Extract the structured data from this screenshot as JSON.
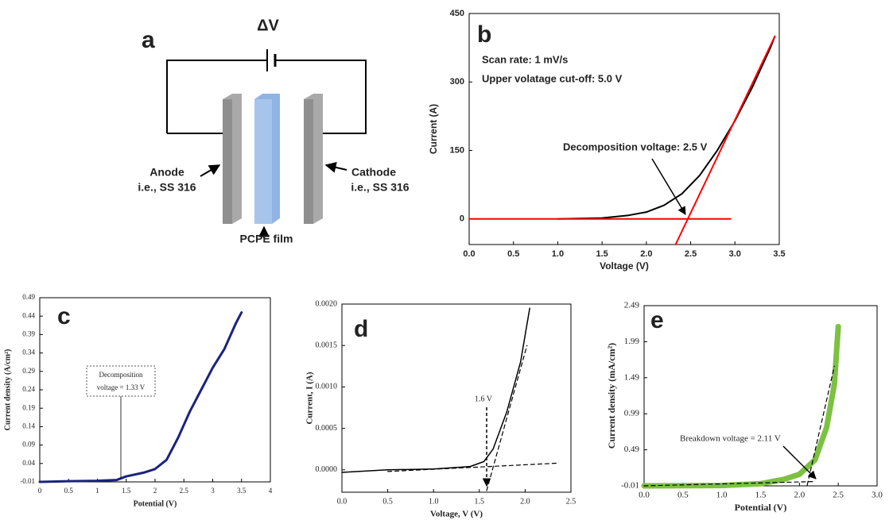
{
  "diagram": {
    "label": "a",
    "voltage": "ΔV",
    "anode": "Anode",
    "anode_note": "i.e., SS 316",
    "cathode": "Cathode",
    "cathode_note": "i.e., SS 316",
    "film": "PCPE film"
  },
  "chart_data": [
    {
      "type": "line",
      "label": "b",
      "xlabel": "Voltage (V)",
      "ylabel": "Current (A)",
      "xlim": [
        0,
        3.5
      ],
      "ylim": [
        -56,
        450
      ],
      "xticks": [
        {
          "value": 0,
          "label": "0.0"
        },
        {
          "value": 0.5,
          "label": "0.5"
        },
        {
          "value": 1,
          "label": "1.0"
        },
        {
          "value": 1.5,
          "label": "1.5"
        },
        {
          "value": 2,
          "label": "2.0"
        },
        {
          "value": 2.5,
          "label": "2.5"
        },
        {
          "value": 3,
          "label": "3.0"
        },
        {
          "value": 3.5,
          "label": "3.5"
        }
      ],
      "yticks": [
        0,
        150,
        300,
        450
      ],
      "annotations": [
        "Scan rate: 1 mV/s",
        "Upper volatage cut-off: 5.0 V",
        "Decomposition voltage: 2.5 V"
      ],
      "series": [
        {
          "color": "#000000",
          "x": [
            1.0,
            1.5,
            1.8,
            2.0,
            2.2,
            2.4,
            2.6,
            2.8,
            3.0,
            3.2,
            3.4,
            3.45
          ],
          "values": [
            0,
            2,
            8,
            15,
            30,
            55,
            95,
            150,
            215,
            290,
            375,
            400
          ]
        },
        {
          "color": "#ff0000",
          "x": [
            0,
            2.95
          ],
          "values": [
            0,
            0
          ]
        },
        {
          "color": "#ff0000",
          "x": [
            2.33,
            3.45
          ],
          "values": [
            -56,
            400
          ]
        }
      ]
    },
    {
      "type": "line",
      "label": "c",
      "xlabel": "Potential (V)",
      "ylabel": "Current density (A/cm²)",
      "xlim": [
        0,
        4
      ],
      "ylim": [
        -0.01,
        0.49
      ],
      "xticks": [
        0,
        0.5,
        1,
        1.5,
        2,
        2.5,
        3,
        3.5,
        4
      ],
      "yticks": [
        -0.01,
        0.04,
        0.09,
        0.14,
        0.19,
        0.24,
        0.29,
        0.34,
        0.39,
        0.44,
        0.49
      ],
      "annotations": [
        "Decomposition",
        "voltage = 1.33 V"
      ],
      "series": [
        {
          "color": "#1a237e",
          "x": [
            0,
            0.5,
            1,
            1.33,
            1.5,
            1.8,
            2.0,
            2.2,
            2.4,
            2.6,
            2.8,
            3.0,
            3.2,
            3.4,
            3.5
          ],
          "values": [
            -0.01,
            -0.008,
            -0.007,
            -0.005,
            0.005,
            0.015,
            0.025,
            0.05,
            0.11,
            0.18,
            0.24,
            0.3,
            0.35,
            0.42,
            0.45
          ]
        }
      ]
    },
    {
      "type": "line",
      "label": "d",
      "xlabel": "Voltage, V (V)",
      "ylabel": "Current, I (A)",
      "xlim": [
        0,
        2.5
      ],
      "ylim": [
        -0.00027,
        0.002
      ],
      "xticks": [
        {
          "value": 0,
          "label": "0.0"
        },
        {
          "value": 0.5,
          "label": "0.5"
        },
        {
          "value": 1,
          "label": "1.0"
        },
        {
          "value": 1.5,
          "label": "1.5"
        },
        {
          "value": 2,
          "label": "2.0"
        },
        {
          "value": 2.5,
          "label": "2.5"
        }
      ],
      "yticks": [
        {
          "value": 0,
          "label": "0.0000"
        },
        {
          "value": 0.0005,
          "label": "0.0005"
        },
        {
          "value": 0.001,
          "label": "0.0010"
        },
        {
          "value": 0.0015,
          "label": "0.0015"
        },
        {
          "value": 0.002,
          "label": "0.0020"
        }
      ],
      "annotations": [
        "1.6 V"
      ],
      "series": [
        {
          "color": "#000000",
          "x": [
            0,
            0.5,
            1.0,
            1.4,
            1.55,
            1.65,
            1.8,
            1.95,
            2.05
          ],
          "values": [
            -3e-05,
            0,
            1e-05,
            4e-05,
            0.0001,
            0.00025,
            0.0007,
            0.0013,
            0.00195
          ]
        },
        {
          "color": "#000000",
          "style": "dashed",
          "x": [
            0.5,
            2.35
          ],
          "values": [
            -2e-05,
            8e-05
          ]
        },
        {
          "color": "#000000",
          "style": "dashed",
          "x": [
            1.58,
            2.02
          ],
          "values": [
            -0.00025,
            0.0015
          ]
        }
      ]
    },
    {
      "type": "line",
      "label": "e",
      "xlabel": "Potential (V)",
      "ylabel": "Current density (mA/cm²)",
      "xlim": [
        0,
        3
      ],
      "ylim": [
        -0.01,
        2.49
      ],
      "xticks": [
        {
          "value": 0,
          "label": "0.0"
        },
        {
          "value": 0.5,
          "label": "0.5"
        },
        {
          "value": 1,
          "label": "1.0"
        },
        {
          "value": 1.5,
          "label": "1.5"
        },
        {
          "value": 2,
          "label": "2.0"
        },
        {
          "value": 2.5,
          "label": "2.5"
        },
        {
          "value": 3,
          "label": "3.0"
        }
      ],
      "yticks": [
        -0.01,
        0.49,
        0.99,
        1.49,
        1.99,
        2.49
      ],
      "annotations": [
        "Breakdown voltage = 2.11 V"
      ],
      "series": [
        {
          "color": "#7cc142",
          "x": [
            0,
            1,
            1.5,
            1.8,
            2.0,
            2.2,
            2.35,
            2.45,
            2.5
          ],
          "values": [
            -0.01,
            -0.005,
            0.02,
            0.08,
            0.15,
            0.35,
            0.8,
            1.4,
            2.2
          ]
        },
        {
          "color": "#000000",
          "style": "dashed",
          "x": [
            0,
            2.2
          ],
          "values": [
            -0.01,
            0.05
          ]
        },
        {
          "color": "#000000",
          "style": "dashed",
          "x": [
            2.1,
            2.45
          ],
          "values": [
            0,
            1.65
          ]
        }
      ]
    }
  ]
}
